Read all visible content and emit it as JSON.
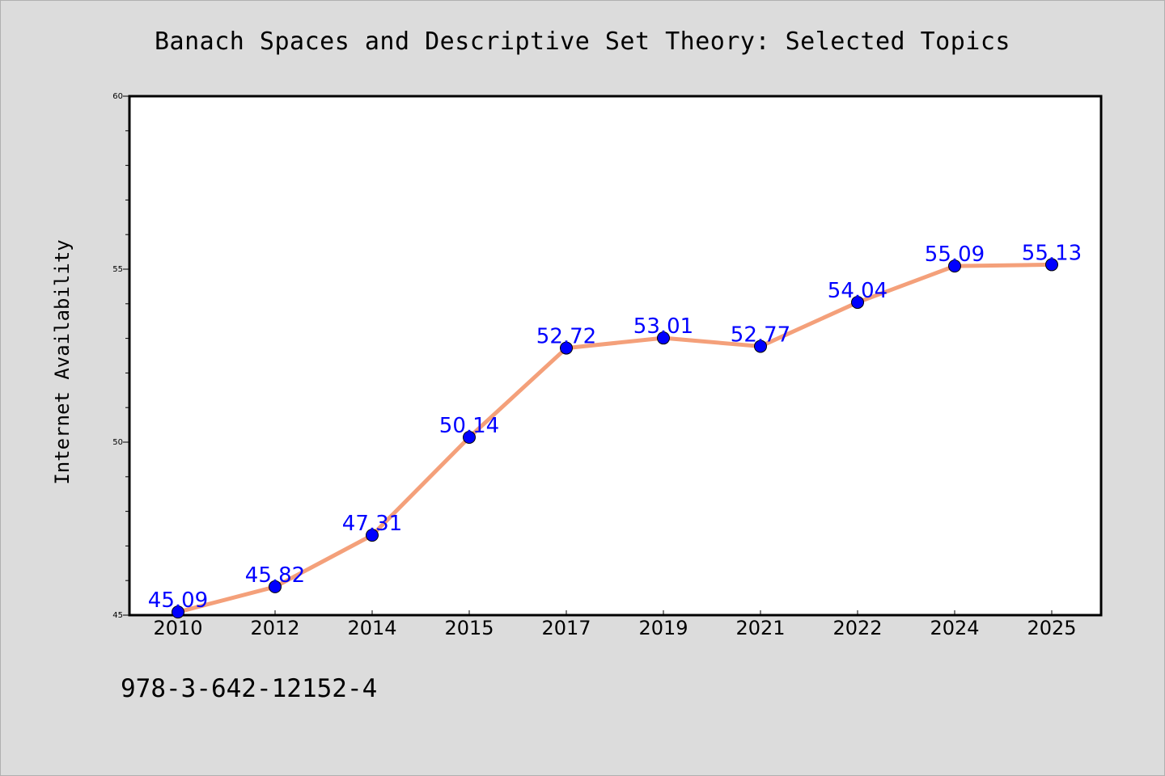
{
  "chart_data": {
    "type": "line",
    "title": "Banach Spaces and Descriptive Set Theory: Selected Topics",
    "xlabel": "",
    "ylabel": "Internet Availability",
    "categories": [
      "2010",
      "2012",
      "2014",
      "2015",
      "2017",
      "2019",
      "2021",
      "2022",
      "2024",
      "2025"
    ],
    "series": [
      {
        "values": [
          45.09,
          45.82,
          47.31,
          50.14,
          52.72,
          53.01,
          52.77,
          54.04,
          55.09,
          55.13
        ],
        "labels": [
          "45.09",
          "45.82",
          "47.31",
          "50.14",
          "52.72",
          "53.01",
          "52.77",
          "54.04",
          "55.09",
          "55.13"
        ],
        "line_color": "#f4a07a",
        "marker_color": "#0000ff"
      }
    ],
    "ylim": [
      45,
      60
    ],
    "yticks": [
      "45",
      "50",
      "55",
      "60"
    ],
    "y_minor_step": 1,
    "grid": false,
    "legend": "none"
  },
  "footer": {
    "code": "978-3-642-12152-4"
  }
}
